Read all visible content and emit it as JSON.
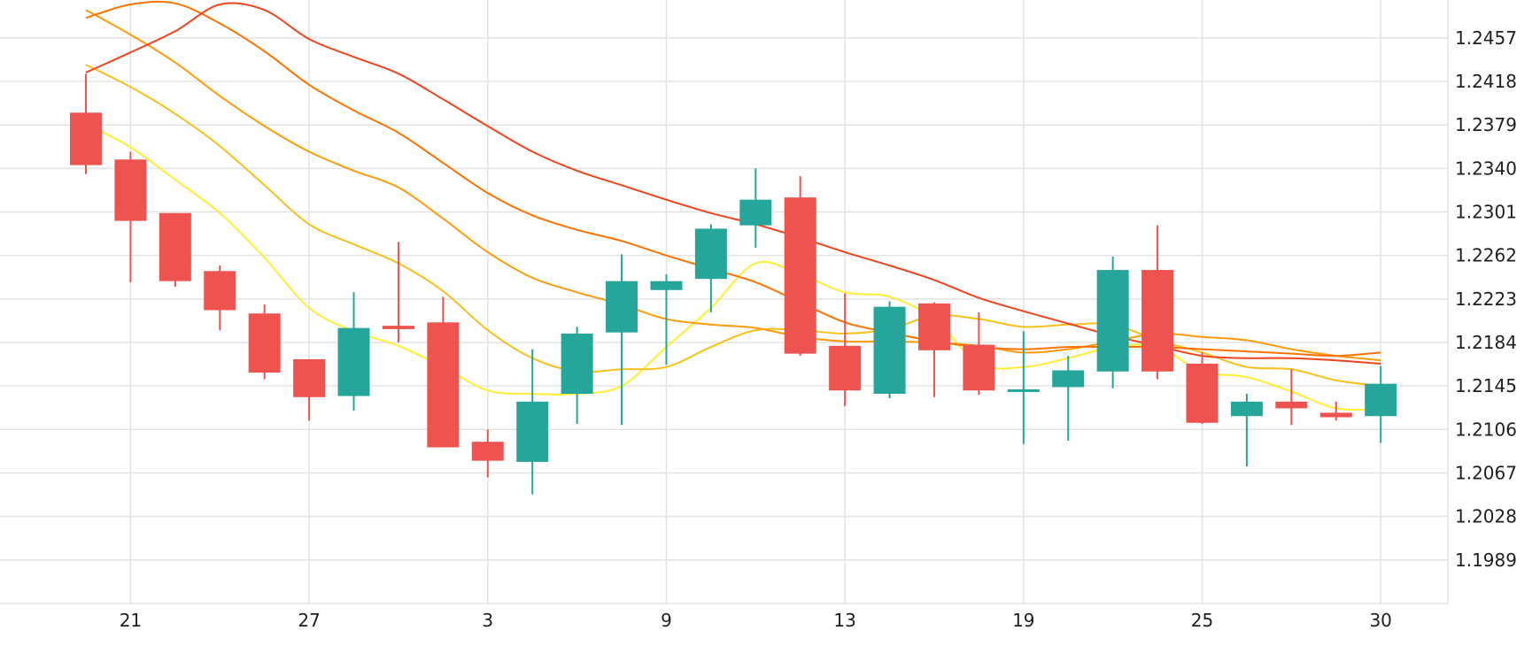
{
  "chart_data": {
    "type": "candlestick",
    "x_ticks": [
      {
        "label": "21",
        "index": 1
      },
      {
        "label": "27",
        "index": 5
      },
      {
        "label": "3",
        "index": 9
      },
      {
        "label": "9",
        "index": 13
      },
      {
        "label": "13",
        "index": 17
      },
      {
        "label": "19",
        "index": 21
      },
      {
        "label": "25",
        "index": 25
      },
      {
        "label": "30",
        "index": 29
      }
    ],
    "y_ticks": [
      "1.1989",
      "1.2028",
      "1.2067",
      "1.2106",
      "1.2145",
      "1.2184",
      "1.2223",
      "1.2262",
      "1.2301",
      "1.2340",
      "1.2379",
      "1.2418",
      "1.2457"
    ],
    "ylim": [
      1.195,
      1.2491
    ],
    "grid": true,
    "colors": {
      "up": "#26a69a",
      "down": "#ef5350"
    },
    "candles": [
      {
        "o": 1.239,
        "h": 1.2425,
        "l": 1.2335,
        "c": 1.2343
      },
      {
        "o": 1.2348,
        "h": 1.2355,
        "l": 1.2238,
        "c": 1.2293
      },
      {
        "o": 1.23,
        "h": 1.23,
        "l": 1.2234,
        "c": 1.2239
      },
      {
        "o": 1.2248,
        "h": 1.2253,
        "l": 1.2195,
        "c": 1.2213
      },
      {
        "o": 1.221,
        "h": 1.2218,
        "l": 1.2151,
        "c": 1.2157
      },
      {
        "o": 1.2169,
        "h": 1.2169,
        "l": 1.2114,
        "c": 1.2135
      },
      {
        "o": 1.2136,
        "h": 1.2229,
        "l": 1.2123,
        "c": 1.2197
      },
      {
        "o": 1.2199,
        "h": 1.2274,
        "l": 1.2184,
        "c": 1.2196
      },
      {
        "o": 1.2202,
        "h": 1.2225,
        "l": 1.209,
        "c": 1.209
      },
      {
        "o": 1.2095,
        "h": 1.2106,
        "l": 1.2063,
        "c": 1.2078
      },
      {
        "o": 1.2077,
        "h": 1.2178,
        "l": 1.2048,
        "c": 1.2131
      },
      {
        "o": 1.2138,
        "h": 1.2198,
        "l": 1.2111,
        "c": 1.2192
      },
      {
        "o": 1.2193,
        "h": 1.2263,
        "l": 1.211,
        "c": 1.2239
      },
      {
        "o": 1.2231,
        "h": 1.2245,
        "l": 1.2164,
        "c": 1.2239
      },
      {
        "o": 1.2241,
        "h": 1.229,
        "l": 1.2211,
        "c": 1.2286
      },
      {
        "o": 1.2289,
        "h": 1.234,
        "l": 1.2269,
        "c": 1.2312
      },
      {
        "o": 1.2314,
        "h": 1.2333,
        "l": 1.2172,
        "c": 1.2174
      },
      {
        "o": 1.2181,
        "h": 1.2228,
        "l": 1.2127,
        "c": 1.2141
      },
      {
        "o": 1.2138,
        "h": 1.2221,
        "l": 1.2134,
        "c": 1.2216
      },
      {
        "o": 1.2219,
        "h": 1.222,
        "l": 1.2135,
        "c": 1.2177
      },
      {
        "o": 1.2182,
        "h": 1.2211,
        "l": 1.2137,
        "c": 1.2141
      },
      {
        "o": 1.2141,
        "h": 1.2194,
        "l": 1.2093,
        "c": 1.2142
      },
      {
        "o": 1.2144,
        "h": 1.2172,
        "l": 1.2096,
        "c": 1.2159
      },
      {
        "o": 1.2158,
        "h": 1.2261,
        "l": 1.2143,
        "c": 1.2249
      },
      {
        "o": 1.2249,
        "h": 1.2289,
        "l": 1.2151,
        "c": 1.2158
      },
      {
        "o": 1.2165,
        "h": 1.2175,
        "l": 1.2111,
        "c": 1.2112
      },
      {
        "o": 1.2118,
        "h": 1.2138,
        "l": 1.2073,
        "c": 1.2131
      },
      {
        "o": 1.2131,
        "h": 1.216,
        "l": 1.211,
        "c": 1.2125
      },
      {
        "o": 1.2121,
        "h": 1.2131,
        "l": 1.2114,
        "c": 1.2117
      },
      {
        "o": 1.2118,
        "h": 1.2163,
        "l": 1.2094,
        "c": 1.2147
      }
    ],
    "ma_lines": [
      {
        "color": "#ffee33",
        "points": [
          [
            0,
            1.238
          ],
          [
            1,
            1.2359
          ],
          [
            2,
            1.233
          ],
          [
            3,
            1.23
          ],
          [
            4,
            1.226
          ],
          [
            5,
            1.2215
          ],
          [
            6,
            1.2194
          ],
          [
            7,
            1.2181
          ],
          [
            8,
            1.2162
          ],
          [
            9,
            1.2141
          ],
          [
            10,
            1.2138
          ],
          [
            11,
            1.2138
          ],
          [
            12,
            1.2145
          ],
          [
            13,
            1.218
          ],
          [
            14,
            1.2215
          ],
          [
            15,
            1.2255
          ],
          [
            16,
            1.2245
          ],
          [
            17,
            1.2229
          ],
          [
            18,
            1.2225
          ],
          [
            19,
            1.2205
          ],
          [
            20,
            1.2165
          ],
          [
            21,
            1.2162
          ],
          [
            22,
            1.217
          ],
          [
            23,
            1.218
          ],
          [
            24,
            1.218
          ],
          [
            25,
            1.2158
          ],
          [
            26,
            1.2153
          ],
          [
            27,
            1.214
          ],
          [
            28,
            1.2125
          ],
          [
            29,
            1.2124
          ]
        ]
      },
      {
        "color": "#f7c01c",
        "points": [
          [
            0,
            1.2433
          ],
          [
            1,
            1.2413
          ],
          [
            2,
            1.2389
          ],
          [
            3,
            1.236
          ],
          [
            4,
            1.2325
          ],
          [
            5,
            1.229
          ],
          [
            6,
            1.2272
          ],
          [
            7,
            1.2255
          ],
          [
            8,
            1.223
          ],
          [
            9,
            1.2195
          ],
          [
            10,
            1.217
          ],
          [
            11,
            1.2158
          ],
          [
            12,
            1.216
          ],
          [
            13,
            1.2162
          ],
          [
            14,
            1.218
          ],
          [
            15,
            1.2195
          ],
          [
            16,
            1.2195
          ],
          [
            17,
            1.2192
          ],
          [
            18,
            1.2196
          ],
          [
            19,
            1.2208
          ],
          [
            20,
            1.2205
          ],
          [
            21,
            1.2198
          ],
          [
            22,
            1.22
          ],
          [
            23,
            1.22
          ],
          [
            24,
            1.2186
          ],
          [
            25,
            1.2175
          ],
          [
            26,
            1.2162
          ],
          [
            27,
            1.216
          ],
          [
            28,
            1.215
          ],
          [
            29,
            1.2145
          ]
        ]
      },
      {
        "color": "#ff9a0a",
        "points": [
          [
            0,
            1.2482
          ],
          [
            1,
            1.246
          ],
          [
            2,
            1.2435
          ],
          [
            3,
            1.2405
          ],
          [
            4,
            1.2378
          ],
          [
            5,
            1.2355
          ],
          [
            6,
            1.2338
          ],
          [
            7,
            1.2323
          ],
          [
            8,
            1.2295
          ],
          [
            9,
            1.2265
          ],
          [
            10,
            1.2242
          ],
          [
            11,
            1.2229
          ],
          [
            12,
            1.2218
          ],
          [
            13,
            1.2205
          ],
          [
            14,
            1.22
          ],
          [
            15,
            1.2197
          ],
          [
            16,
            1.2189
          ],
          [
            17,
            1.2185
          ],
          [
            18,
            1.2185
          ],
          [
            19,
            1.2184
          ],
          [
            20,
            1.2181
          ],
          [
            21,
            1.2175
          ],
          [
            22,
            1.2178
          ],
          [
            23,
            1.2185
          ],
          [
            24,
            1.2192
          ],
          [
            25,
            1.2189
          ],
          [
            26,
            1.2186
          ],
          [
            27,
            1.2178
          ],
          [
            28,
            1.2172
          ],
          [
            29,
            1.2168
          ]
        ]
      },
      {
        "color": "#ff7200",
        "points": [
          [
            0,
            1.2475
          ],
          [
            1,
            1.2487
          ],
          [
            2,
            1.2488
          ],
          [
            3,
            1.247
          ],
          [
            4,
            1.2445
          ],
          [
            5,
            1.2415
          ],
          [
            6,
            1.2392
          ],
          [
            7,
            1.2372
          ],
          [
            8,
            1.2345
          ],
          [
            9,
            1.2318
          ],
          [
            10,
            1.2298
          ],
          [
            11,
            1.2285
          ],
          [
            12,
            1.2275
          ],
          [
            13,
            1.2262
          ],
          [
            14,
            1.225
          ],
          [
            15,
            1.2238
          ],
          [
            16,
            1.222
          ],
          [
            17,
            1.2202
          ],
          [
            18,
            1.2193
          ],
          [
            19,
            1.2185
          ],
          [
            20,
            1.218
          ],
          [
            21,
            1.2178
          ],
          [
            22,
            1.218
          ],
          [
            23,
            1.218
          ],
          [
            24,
            1.218
          ],
          [
            25,
            1.2178
          ],
          [
            26,
            1.2176
          ],
          [
            27,
            1.2174
          ],
          [
            28,
            1.2172
          ],
          [
            29,
            1.2175
          ]
        ]
      },
      {
        "color": "#f0431e",
        "points": [
          [
            0,
            1.2426
          ],
          [
            1,
            1.2444
          ],
          [
            2,
            1.2463
          ],
          [
            3,
            1.2487
          ],
          [
            4,
            1.2482
          ],
          [
            5,
            1.2456
          ],
          [
            6,
            1.244
          ],
          [
            7,
            1.2425
          ],
          [
            8,
            1.2402
          ],
          [
            9,
            1.2378
          ],
          [
            10,
            1.2355
          ],
          [
            11,
            1.2338
          ],
          [
            12,
            1.2325
          ],
          [
            13,
            1.2312
          ],
          [
            14,
            1.23
          ],
          [
            15,
            1.229
          ],
          [
            16,
            1.2278
          ],
          [
            17,
            1.2265
          ],
          [
            18,
            1.2253
          ],
          [
            19,
            1.224
          ],
          [
            20,
            1.2224
          ],
          [
            21,
            1.2212
          ],
          [
            22,
            1.2201
          ],
          [
            23,
            1.219
          ],
          [
            24,
            1.2181
          ],
          [
            25,
            1.2172
          ],
          [
            26,
            1.217
          ],
          [
            27,
            1.217
          ],
          [
            28,
            1.2168
          ],
          [
            29,
            1.2165
          ]
        ]
      }
    ]
  }
}
